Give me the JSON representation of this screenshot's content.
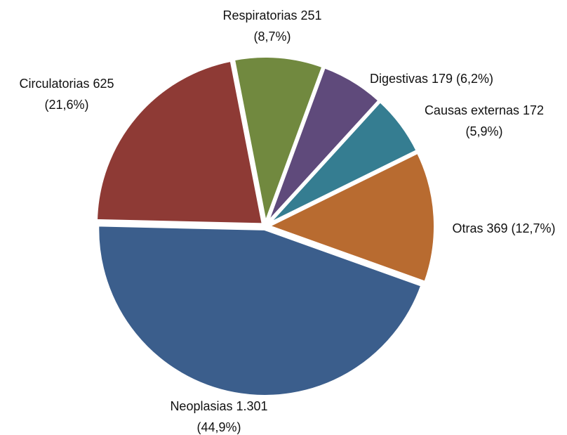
{
  "chart_data": {
    "type": "pie",
    "categories": [
      "Respiratorias",
      "Digestivas",
      "Causas externas",
      "Otras",
      "Neoplasias",
      "Circulatorias"
    ],
    "values": [
      251,
      179,
      172,
      369,
      1301,
      625
    ],
    "value_labels": [
      "251",
      "179",
      "172",
      "369",
      "1.301",
      "625"
    ],
    "percents": [
      8.7,
      6.2,
      5.9,
      12.7,
      44.9,
      21.6
    ],
    "percent_labels": [
      "(8,7%)",
      "(6,2%)",
      "(5,9%)",
      "(12,7%)",
      "(44,9%)",
      "(21,6%)"
    ],
    "colors": [
      "#71893f",
      "#5f4a7b",
      "#357d91",
      "#b86b30",
      "#3b5e8c",
      "#8e3a35"
    ]
  }
}
